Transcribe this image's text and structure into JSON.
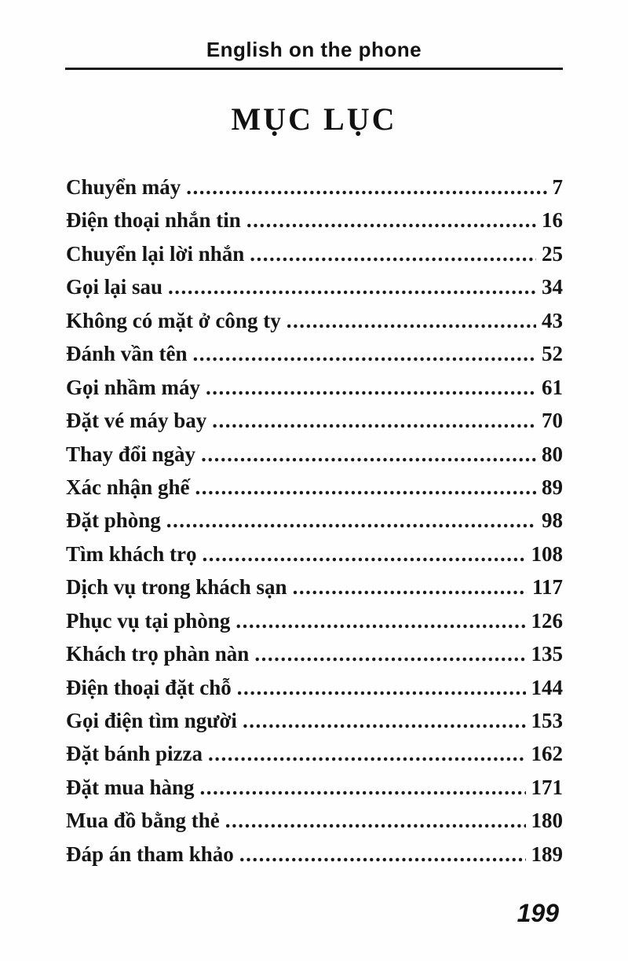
{
  "page": {
    "header": "English on the phone",
    "title": "MỤC LỤC",
    "folio": "199"
  },
  "colors": {
    "ink": "#141414",
    "paper": "#fefefe"
  },
  "toc": {
    "entries": [
      {
        "title": "Chuyển máy",
        "page": "7"
      },
      {
        "title": "Điện thoại nhắn tin",
        "page": "16"
      },
      {
        "title": "Chuyển lại lời nhắn",
        "page": "25"
      },
      {
        "title": "Gọi lại sau",
        "page": "34"
      },
      {
        "title": "Không có mặt ở công ty",
        "page": "43"
      },
      {
        "title": "Đánh vần tên",
        "page": "52"
      },
      {
        "title": "Gọi nhầm máy",
        "page": "61"
      },
      {
        "title": "Đặt vé máy bay",
        "page": "70"
      },
      {
        "title": "Thay đổi ngày",
        "page": "80"
      },
      {
        "title": "Xác nhận ghế",
        "page": "89"
      },
      {
        "title": "Đặt phòng",
        "page": "98"
      },
      {
        "title": "Tìm khách trọ",
        "page": "108"
      },
      {
        "title": "Dịch vụ trong khách sạn",
        "page": "117"
      },
      {
        "title": "Phục vụ tại phòng",
        "page": "126"
      },
      {
        "title": "Khách trọ phàn nàn",
        "page": "135"
      },
      {
        "title": "Điện thoại đặt chỗ",
        "page": "144"
      },
      {
        "title": "Gọi điện tìm người",
        "page": "153"
      },
      {
        "title": "Đặt bánh pizza",
        "page": "162"
      },
      {
        "title": "Đặt mua hàng",
        "page": "171"
      },
      {
        "title": "Mua đồ bằng thẻ",
        "page": "180"
      },
      {
        "title": "Đáp án tham khảo",
        "page": "189"
      }
    ]
  }
}
